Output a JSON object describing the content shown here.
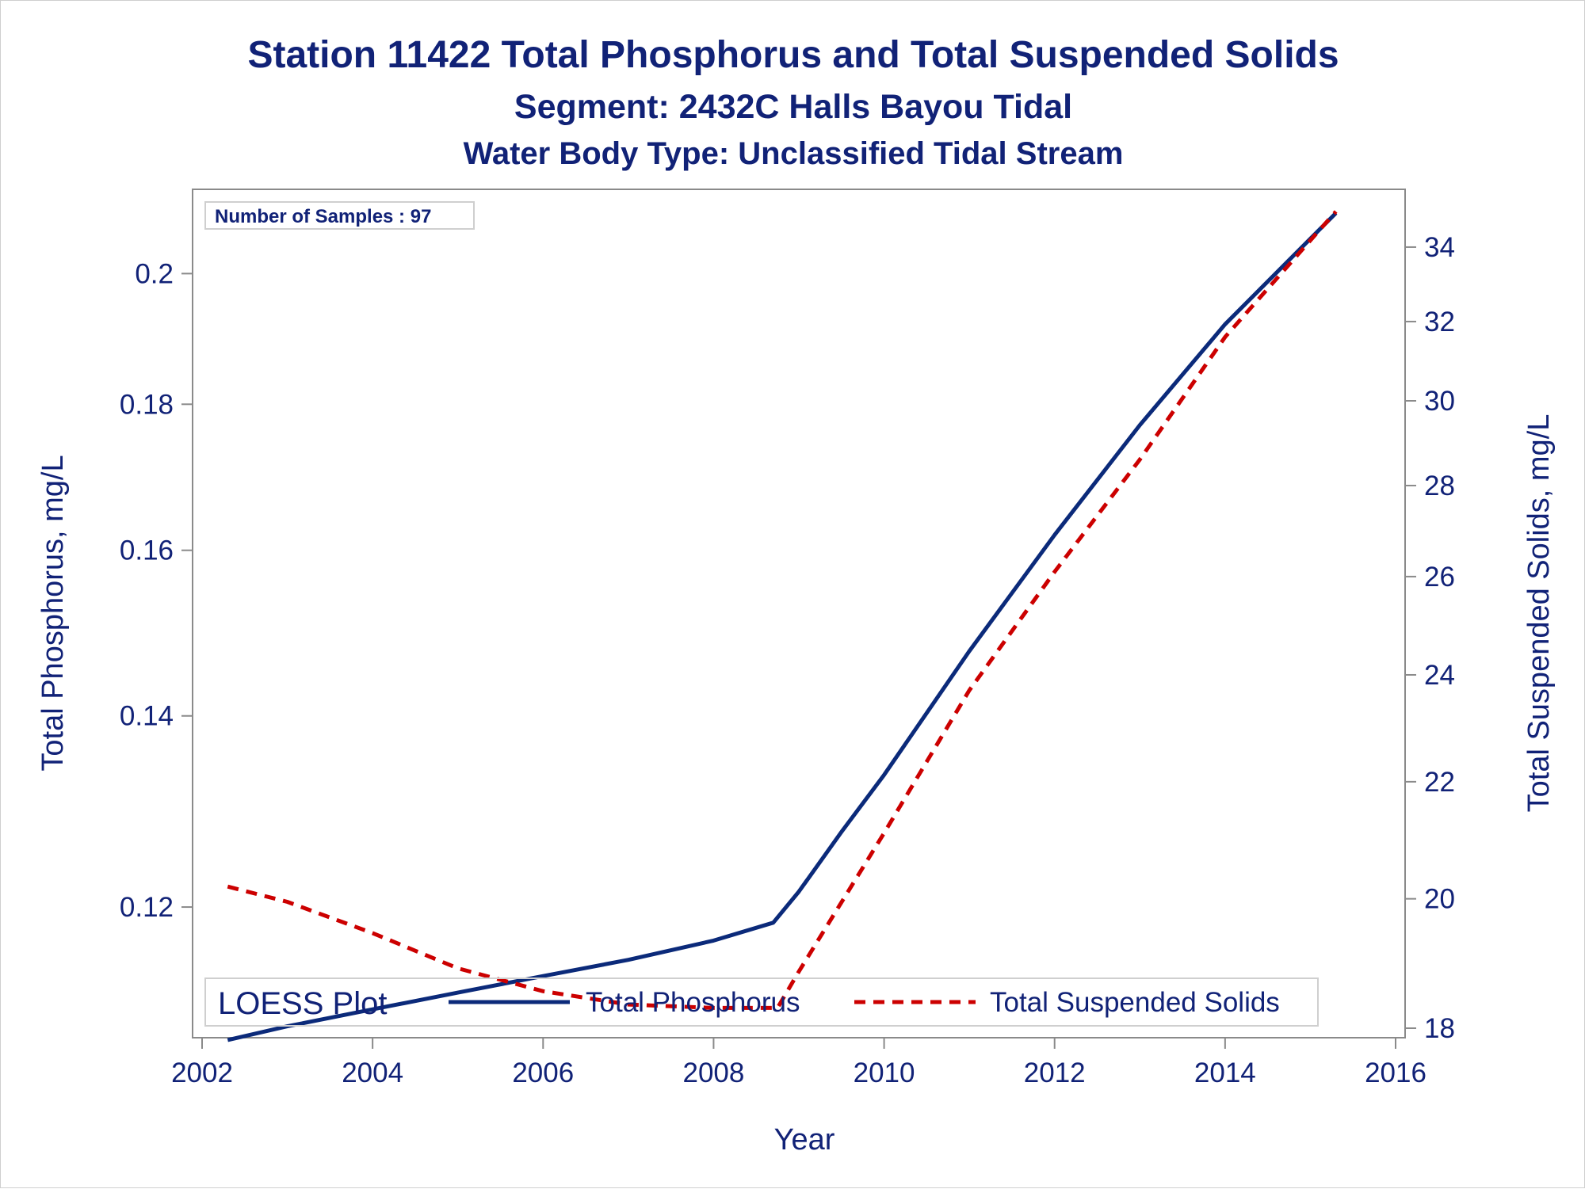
{
  "titles": {
    "line1": "Station 11422  Total Phosphorus and Total Suspended Solids",
    "line2": "Segment: 2432C  Halls Bayou Tidal",
    "line3": "Water Body Type: Unclassified Tidal Stream"
  },
  "inset": {
    "text": "Number of Samples : 97"
  },
  "legend": {
    "title": "LOESS Plot",
    "items": [
      "Total Phosphorus",
      "Total Suspended Solids"
    ]
  },
  "colors": {
    "phosphorus": "#0b2a7a",
    "tss": "#cc0000",
    "text": "#112277",
    "axis": "#8a8a8a"
  },
  "chart_data": {
    "type": "line",
    "title": "Station 11422  Total Phosphorus and Total Suspended Solids",
    "xlabel": "Year",
    "ylabel": "Total Phosphorus, mg/L",
    "y2label": "Total Suspended Solids, mg/L",
    "xlim": [
      2002,
      2016
    ],
    "ylim": [
      0.108,
      0.21
    ],
    "y2lim": [
      18,
      35
    ],
    "yscale": "log",
    "y2scale": "log",
    "x_ticks": [
      2002,
      2004,
      2006,
      2008,
      2010,
      2012,
      2014,
      2016
    ],
    "y_ticks": [
      0.12,
      0.14,
      0.16,
      0.18,
      0.2
    ],
    "y2_ticks": [
      18,
      20,
      22,
      24,
      26,
      28,
      30,
      32,
      34
    ],
    "grid": false,
    "legend_position": "bottom-inside",
    "series": [
      {
        "name": "Total Phosphorus",
        "axis": "left",
        "style": "solid",
        "x": [
          2002.3,
          2003.0,
          2004.0,
          2005.0,
          2006.0,
          2007.0,
          2008.0,
          2008.7,
          2009.0,
          2009.5,
          2010.0,
          2011.0,
          2012.0,
          2013.0,
          2014.0,
          2015.3
        ],
        "values": [
          0.1078,
          0.109,
          0.1105,
          0.112,
          0.1135,
          0.115,
          0.1168,
          0.1185,
          0.1215,
          0.1275,
          0.1335,
          0.1475,
          0.162,
          0.177,
          0.192,
          0.21
        ]
      },
      {
        "name": "Total Suspended Solids",
        "axis": "right",
        "style": "dashed",
        "x": [
          2002.3,
          2003.0,
          2004.0,
          2005.0,
          2006.0,
          2007.0,
          2008.0,
          2008.75,
          2009.0,
          2010.0,
          2011.0,
          2012.0,
          2013.0,
          2014.0,
          2015.3
        ],
        "values": [
          20.2,
          19.95,
          19.45,
          18.9,
          18.55,
          18.35,
          18.3,
          18.3,
          18.85,
          21.1,
          23.7,
          26.1,
          28.6,
          31.6,
          35.0
        ]
      }
    ]
  }
}
